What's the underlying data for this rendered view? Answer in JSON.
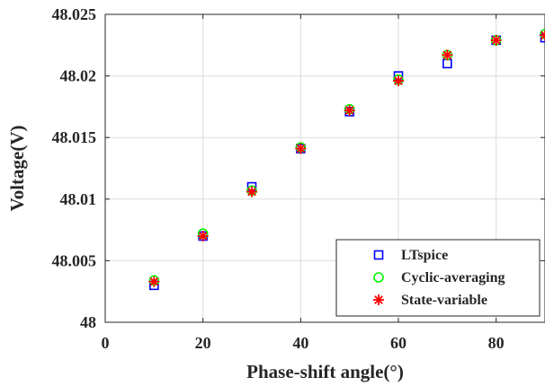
{
  "chart_data": {
    "type": "scatter",
    "title": "",
    "xlabel": "Phase-shift angle(°)",
    "ylabel": "Voltage(V)",
    "xlim": [
      0,
      90
    ],
    "ylim": [
      48.0,
      48.025
    ],
    "xticks": [
      0,
      20,
      40,
      60,
      80
    ],
    "xtick_labels": [
      "0",
      "20",
      "40",
      "60",
      "80"
    ],
    "yticks": [
      48.0,
      48.005,
      48.01,
      48.015,
      48.02,
      48.025
    ],
    "ytick_labels": [
      "48",
      "48.005",
      "48.01",
      "48.015",
      "48.02",
      "48.025"
    ],
    "grid": true,
    "legend_position": "bottom-right",
    "series": [
      {
        "name": "LTspice",
        "marker": "square",
        "color": "#0000ff",
        "x": [
          10,
          20,
          30,
          40,
          50,
          60,
          70,
          80,
          90
        ],
        "y": [
          48.003,
          48.007,
          48.011,
          48.0141,
          48.0171,
          48.02,
          48.021,
          48.0229,
          48.0231
        ]
      },
      {
        "name": "Cyclic-averaging",
        "marker": "circle",
        "color": "#00ff00",
        "x": [
          10,
          20,
          30,
          40,
          50,
          60,
          70,
          80,
          90
        ],
        "y": [
          48.0034,
          48.0072,
          48.0107,
          48.0142,
          48.0173,
          48.0197,
          48.0217,
          48.0229,
          48.0234
        ]
      },
      {
        "name": "State-variable",
        "marker": "asterisk",
        "color": "#ff0000",
        "x": [
          10,
          20,
          30,
          40,
          50,
          60,
          70,
          80,
          90
        ],
        "y": [
          48.0033,
          48.007,
          48.0106,
          48.0141,
          48.0172,
          48.0196,
          48.0217,
          48.0229,
          48.0233
        ]
      }
    ]
  }
}
